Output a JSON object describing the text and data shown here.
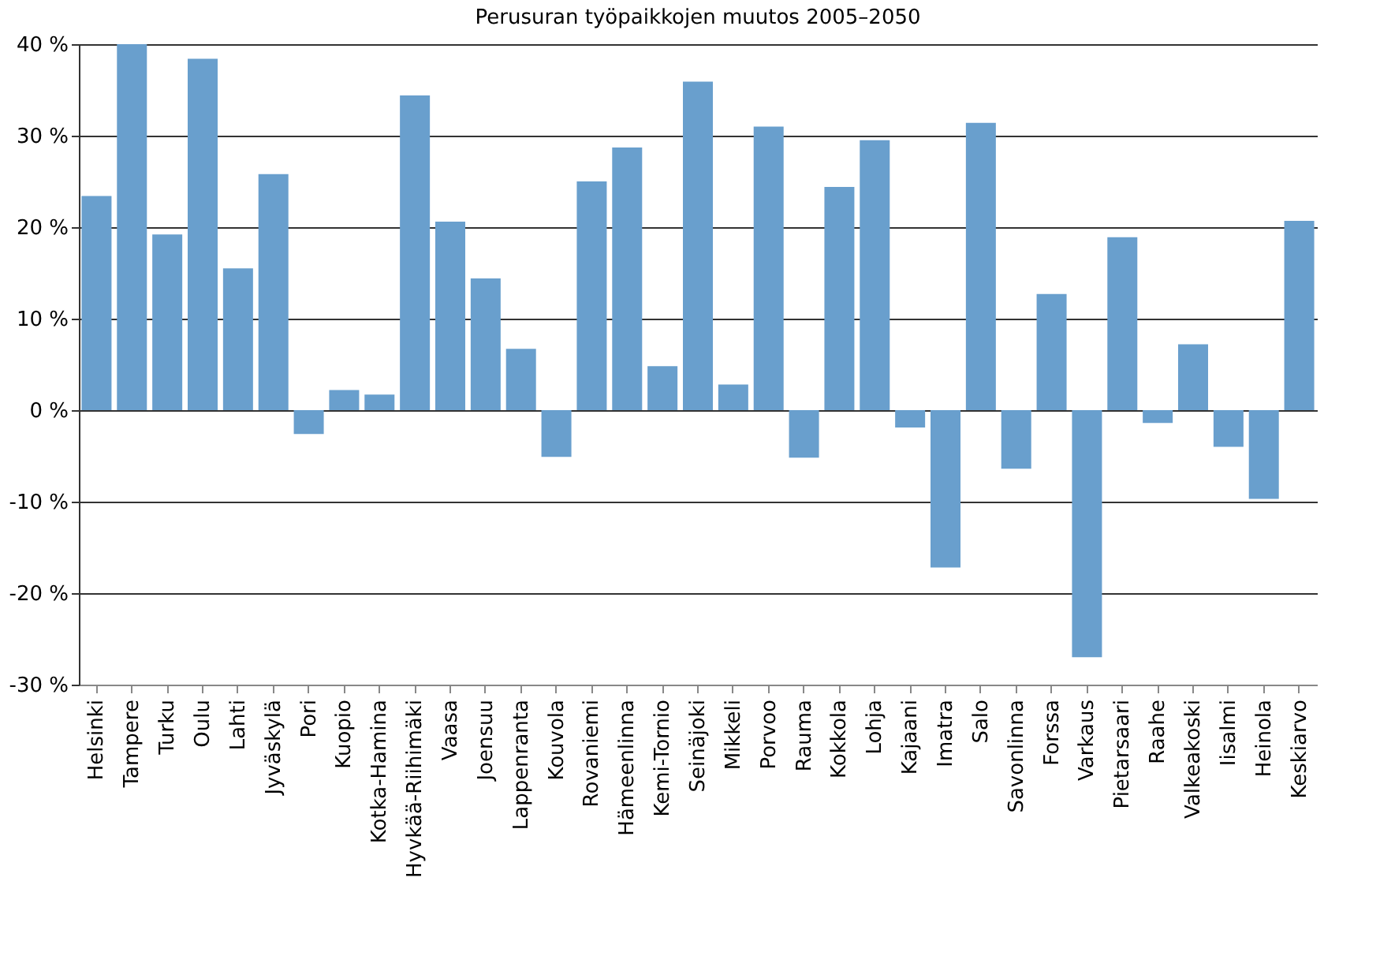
{
  "chart_data": {
    "type": "bar",
    "title": "Perusuran työpaikkojen muutos 2005–2050",
    "categories": [
      "Helsinki",
      "Tampere",
      "Turku",
      "Oulu",
      "Lahti",
      "Jyväskylä",
      "Pori",
      "Kuopio",
      "Kotka-Hamina",
      "Hyvkää-Riihimäki",
      "Vaasa",
      "Joensuu",
      "Lappenranta",
      "Kouvola",
      "Rovaniemi",
      "Hämeenlinna",
      "Kemi-Tornio",
      "Seinäjoki",
      "Mikkeli",
      "Porvoo",
      "Rauma",
      "Kokkola",
      "Lohja",
      "Kajaani",
      "Imatra",
      "Salo",
      "Savonlinna",
      "Forssa",
      "Varkaus",
      "Pietarsaari",
      "Raahe",
      "Valkeakoski",
      "Iisalmi",
      "Heinola",
      "Keskiarvo"
    ],
    "values": [
      23.4,
      40,
      19.2,
      38.4,
      15.5,
      25.8,
      -2.6,
      2.2,
      1.7,
      34.4,
      20.6,
      14.4,
      6.7,
      -5.1,
      25.0,
      28.7,
      4.8,
      35.9,
      2.8,
      31.0,
      -5.2,
      24.4,
      29.5,
      -1.9,
      -17.2,
      31.4,
      -6.4,
      12.7,
      -27.0,
      18.9,
      -1.4,
      7.2,
      -4.0,
      -9.7,
      20.7
    ],
    "color": "#699fcd",
    "ylim": [
      -30,
      40
    ],
    "yticks": [
      {
        "value": -30,
        "label": "-30 %"
      },
      {
        "value": -20,
        "label": "-20 %"
      },
      {
        "value": -10,
        "label": "-10 %"
      },
      {
        "value": 0,
        "label": "0 %"
      },
      {
        "value": 10,
        "label": "10 %"
      },
      {
        "value": 20,
        "label": "20 %"
      },
      {
        "value": 30,
        "label": "30 %"
      },
      {
        "value": 40,
        "label": "40 %"
      }
    ],
    "grid": "y"
  }
}
